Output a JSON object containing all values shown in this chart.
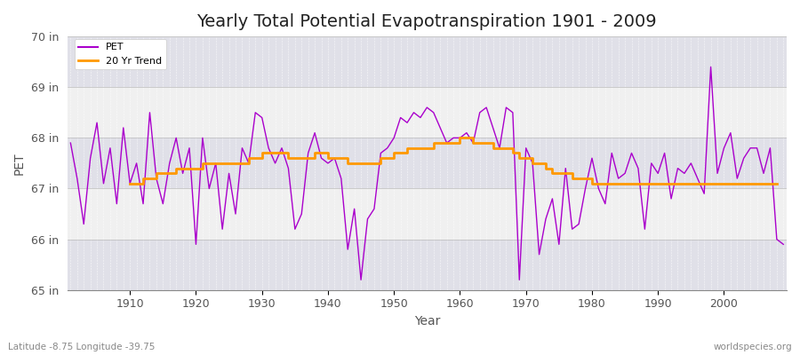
{
  "title": "Yearly Total Potential Evapotranspiration 1901 - 2009",
  "ylabel": "PET",
  "xlabel": "Year",
  "subtitle": "Latitude -8.75 Longitude -39.75",
  "watermark": "worldspecies.org",
  "years": [
    1901,
    1902,
    1903,
    1904,
    1905,
    1906,
    1907,
    1908,
    1909,
    1910,
    1911,
    1912,
    1913,
    1914,
    1915,
    1916,
    1917,
    1918,
    1919,
    1920,
    1921,
    1922,
    1923,
    1924,
    1925,
    1926,
    1927,
    1928,
    1929,
    1930,
    1931,
    1932,
    1933,
    1934,
    1935,
    1936,
    1937,
    1938,
    1939,
    1940,
    1941,
    1942,
    1943,
    1944,
    1945,
    1946,
    1947,
    1948,
    1949,
    1950,
    1951,
    1952,
    1953,
    1954,
    1955,
    1956,
    1957,
    1958,
    1959,
    1960,
    1961,
    1962,
    1963,
    1964,
    1965,
    1966,
    1967,
    1968,
    1969,
    1970,
    1971,
    1972,
    1973,
    1974,
    1975,
    1976,
    1977,
    1978,
    1979,
    1980,
    1981,
    1982,
    1983,
    1984,
    1985,
    1986,
    1987,
    1988,
    1989,
    1990,
    1991,
    1992,
    1993,
    1994,
    1995,
    1996,
    1997,
    1998,
    1999,
    2000,
    2001,
    2002,
    2003,
    2004,
    2005,
    2006,
    2007,
    2008,
    2009
  ],
  "pet": [
    67.9,
    67.2,
    66.3,
    67.6,
    68.3,
    67.1,
    67.8,
    66.7,
    68.2,
    67.1,
    67.5,
    66.7,
    68.5,
    67.2,
    66.7,
    67.5,
    68.0,
    67.3,
    67.8,
    65.9,
    68.0,
    67.0,
    67.5,
    66.2,
    67.3,
    66.5,
    67.8,
    67.5,
    68.5,
    68.4,
    67.8,
    67.5,
    67.8,
    67.4,
    66.2,
    66.5,
    67.7,
    68.1,
    67.6,
    67.5,
    67.6,
    67.2,
    65.8,
    66.6,
    65.2,
    66.4,
    66.6,
    67.7,
    67.8,
    68.0,
    68.4,
    68.3,
    68.5,
    68.4,
    68.6,
    68.5,
    68.2,
    67.9,
    68.0,
    68.0,
    68.1,
    67.9,
    68.5,
    68.6,
    68.2,
    67.8,
    68.6,
    68.5,
    65.2,
    67.8,
    67.5,
    65.7,
    66.4,
    66.8,
    65.9,
    67.4,
    66.2,
    66.3,
    67.0,
    67.6,
    67.0,
    66.7,
    67.7,
    67.2,
    67.3,
    67.7,
    67.4,
    66.2,
    67.5,
    67.3,
    67.7,
    66.8,
    67.4,
    67.3,
    67.5,
    67.2,
    66.9,
    69.4,
    67.3,
    67.8,
    68.1,
    67.2,
    67.6,
    67.8,
    67.8,
    67.3,
    67.8,
    66.0,
    65.9
  ],
  "trend": [
    null,
    null,
    null,
    null,
    null,
    null,
    null,
    null,
    null,
    67.1,
    67.1,
    67.2,
    67.2,
    67.3,
    67.3,
    67.3,
    67.4,
    67.4,
    67.4,
    67.4,
    67.5,
    67.5,
    67.5,
    67.5,
    67.5,
    67.5,
    67.5,
    67.6,
    67.6,
    67.7,
    67.7,
    67.7,
    67.7,
    67.6,
    67.6,
    67.6,
    67.6,
    67.7,
    67.7,
    67.6,
    67.6,
    67.6,
    67.5,
    67.5,
    67.5,
    67.5,
    67.5,
    67.6,
    67.6,
    67.7,
    67.7,
    67.8,
    67.8,
    67.8,
    67.8,
    67.9,
    67.9,
    67.9,
    67.9,
    68.0,
    68.0,
    67.9,
    67.9,
    67.9,
    67.8,
    67.8,
    67.8,
    67.7,
    67.6,
    67.6,
    67.5,
    67.5,
    67.4,
    67.3,
    67.3,
    67.3,
    67.2,
    67.2,
    67.2,
    67.1,
    67.1,
    67.1,
    67.1,
    67.1,
    67.1,
    67.1,
    67.1,
    67.1,
    67.1,
    67.1,
    67.1,
    67.1,
    67.1,
    67.1,
    67.1,
    67.1,
    67.1,
    67.1,
    67.1,
    67.1,
    67.1,
    67.1,
    67.1,
    67.1,
    67.1,
    67.1,
    67.1,
    67.1
  ],
  "pet_color": "#aa00cc",
  "trend_color": "#ff9900",
  "fig_bg_color": "#ffffff",
  "plot_bg_color_light": "#f0f0f0",
  "plot_bg_color_dark": "#e0e0e8",
  "ylim": [
    65.0,
    70.0
  ],
  "yticks": [
    65,
    66,
    67,
    68,
    69,
    70
  ],
  "ytick_labels": [
    "65 in",
    "66 in",
    "67 in",
    "68 in",
    "69 in",
    "70 in"
  ],
  "xticks": [
    1910,
    1920,
    1930,
    1940,
    1950,
    1960,
    1970,
    1980,
    1990,
    2000
  ],
  "legend_pet": "PET",
  "legend_trend": "20 Yr Trend",
  "title_fontsize": 14,
  "axis_label_fontsize": 10,
  "tick_fontsize": 9
}
